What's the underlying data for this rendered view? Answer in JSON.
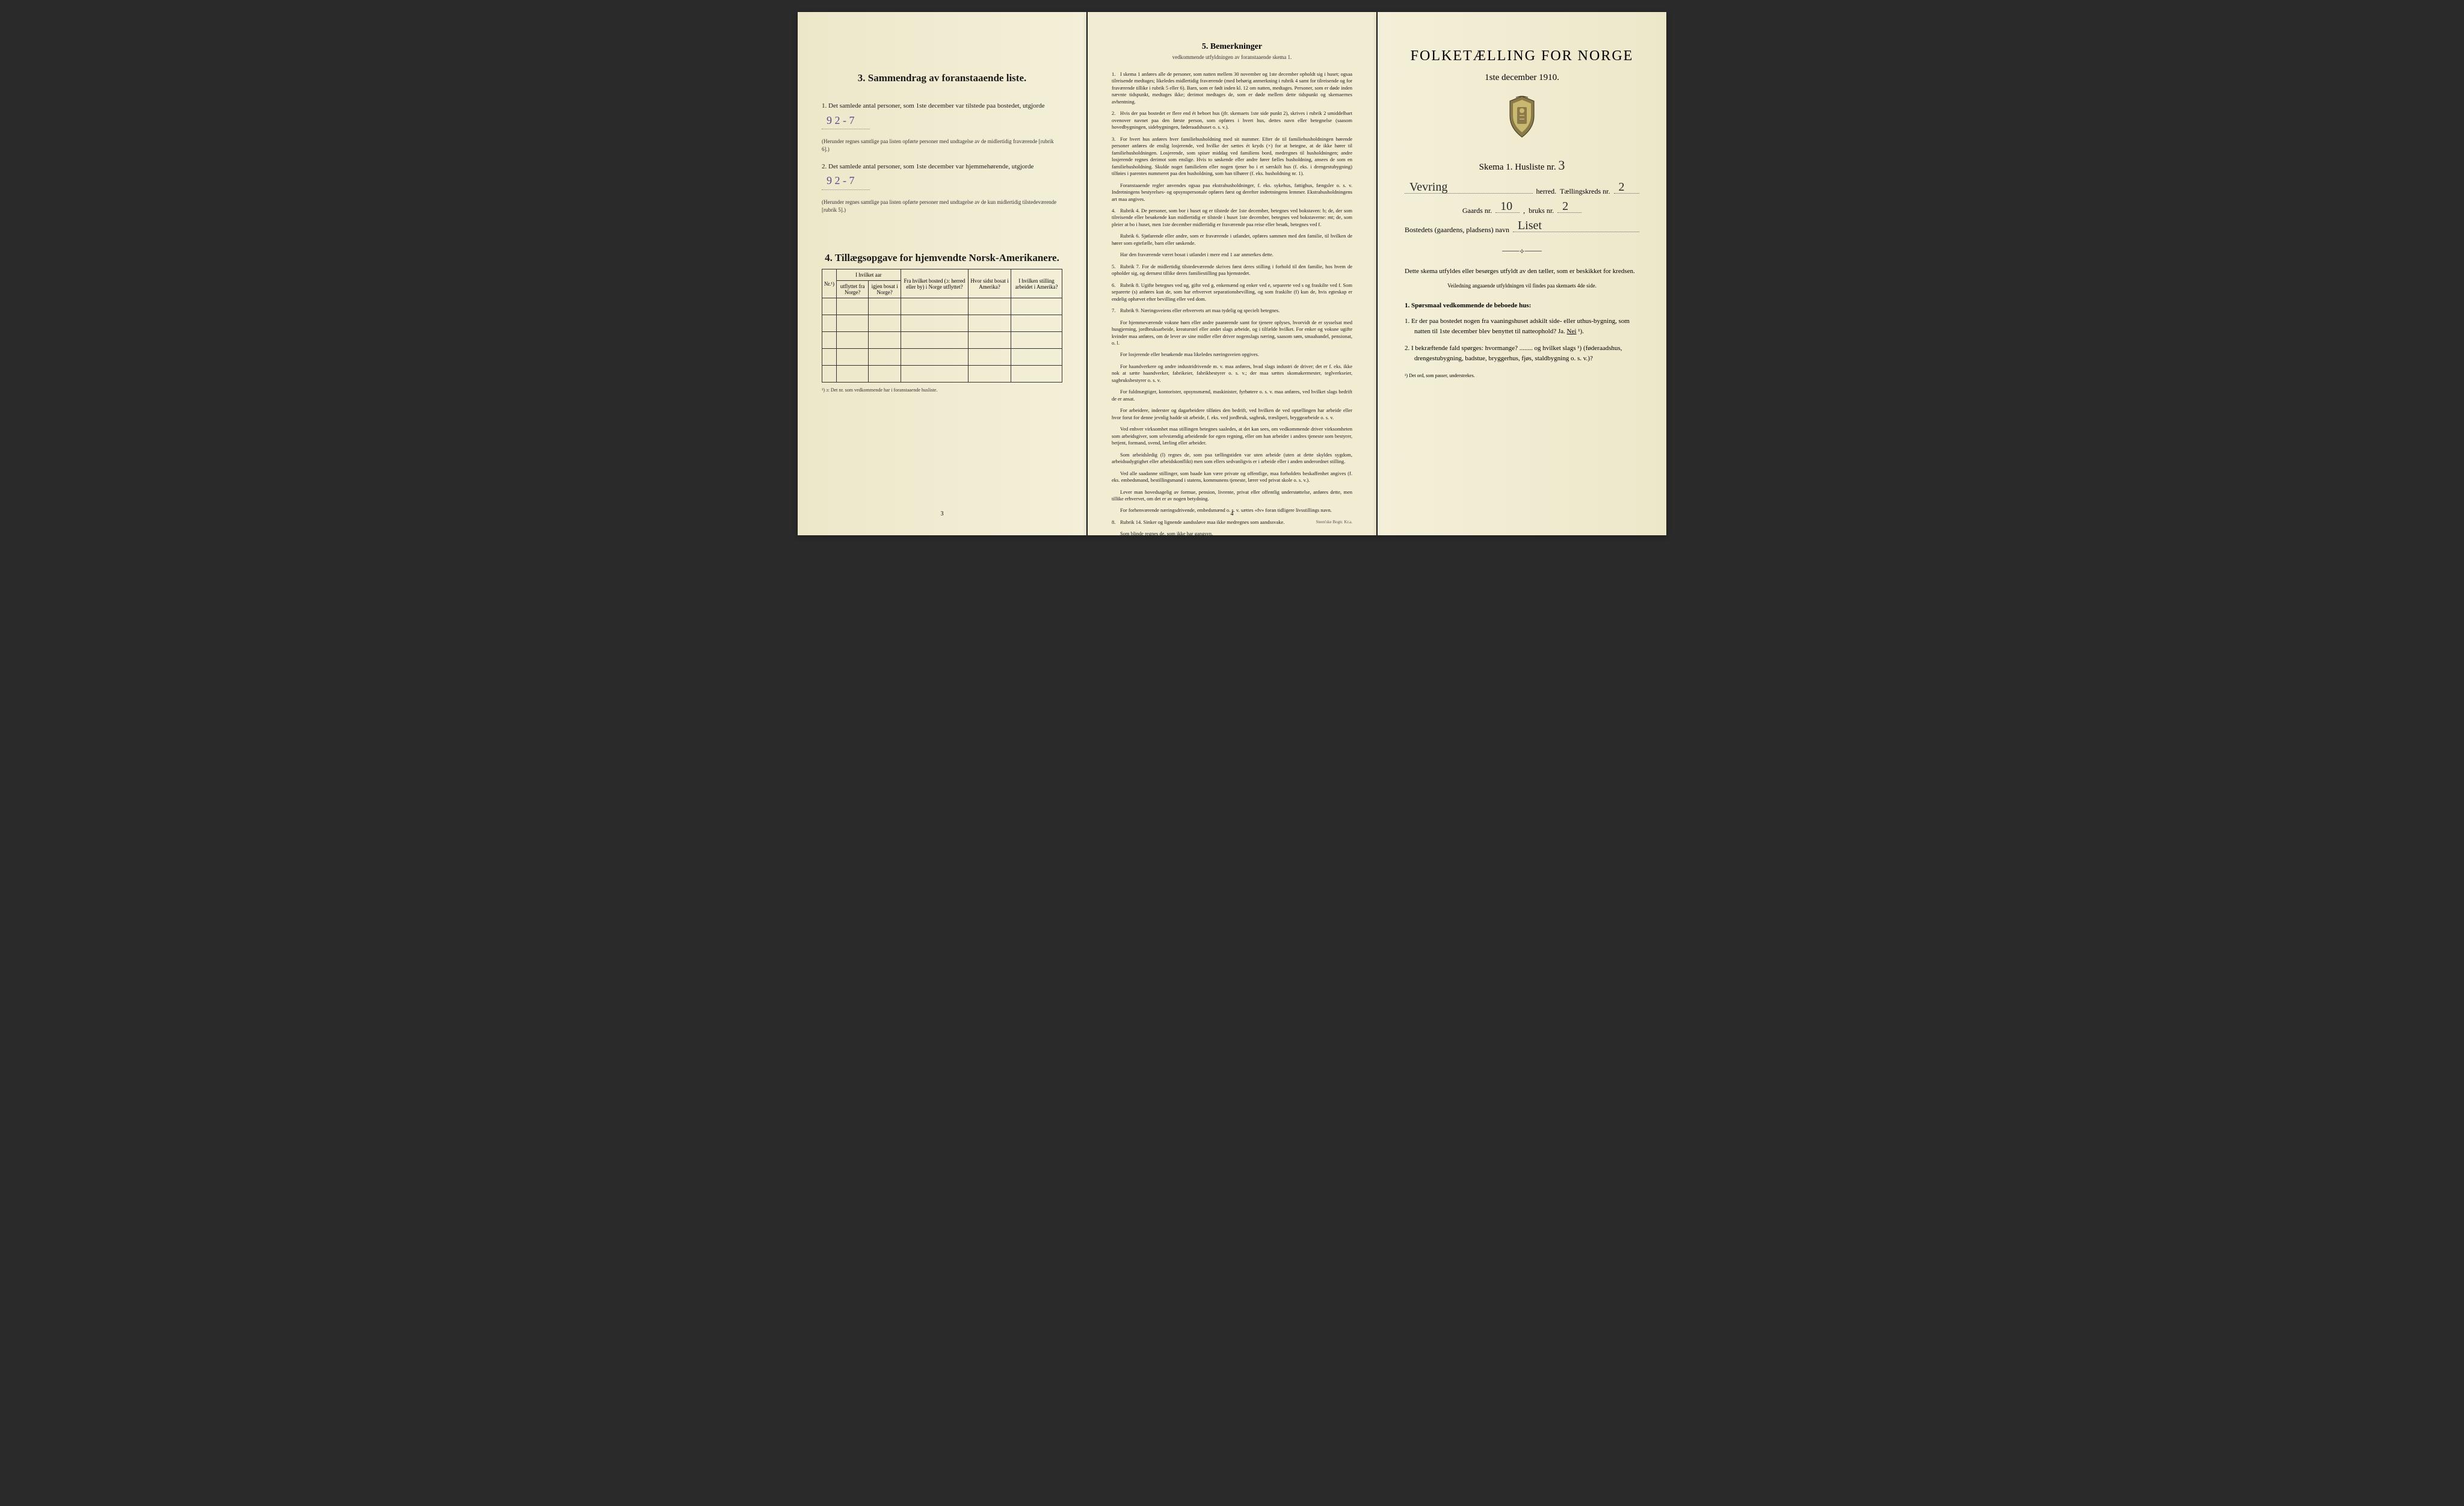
{
  "page1": {
    "section3": {
      "title": "3.   Sammendrag av foranstaaende liste.",
      "item1_prefix": "1.  Det samlede antal personer, som 1ste december var tilstede paa bostedet, utgjorde",
      "item1_value": "9   2 - 7",
      "item1_note": "(Herunder regnes samtlige paa listen opførte personer med undtagelse av de midlertidig fraværende [rubrik 6].)",
      "item2_prefix": "2.  Det samlede antal personer, som 1ste december var hjemmehørende, utgjorde",
      "item2_value": "9    2 - 7",
      "item2_note": "(Herunder regnes samtlige paa listen opførte personer med undtagelse av de kun midlertidig tilstedeværende [rubrik 5].)"
    },
    "section4": {
      "title": "4.  Tillægsopgave for hjemvendte Norsk-Amerikanere.",
      "cols": {
        "c1": "Nr.¹)",
        "c2a": "I hvilket aar",
        "c2b_left": "utflyttet fra Norge?",
        "c2b_right": "igjen bosat i Norge?",
        "c3": "Fra hvilket bosted (ɔ: herred eller by) i Norge utflyttet?",
        "c4": "Hvor sidst bosat i Amerika?",
        "c5": "I hvilken stilling arbeidet i Amerika?"
      },
      "footnote": "¹) ɔ: Det nr. som vedkommende har i foranstaaende husliste."
    },
    "page_number": "3"
  },
  "page2": {
    "title": "5.   Bemerkninger",
    "subtitle": "vedkommende utfyldningen av foranstaaende skema 1.",
    "rules": [
      {
        "n": "1.",
        "text": "I skema 1 anføres alle de personer, som natten mellem 30 november og 1ste december opholdt sig i huset; ogsaa tilreisende medtages; likeledes midlertidig fraværende (med behørig anmerkning i rubrik 4 samt for tilreisende og for fraværende tillike i rubrik 5 eller 6). Barn, som er født inden kl. 12 om natten, medtages. Personer, som er døde inden nævnte tidspunkt, medtages ikke; derimot medtages de, som er døde mellem dette tidspunkt og skemaernes avhentning."
      },
      {
        "n": "2.",
        "text": "Hvis der paa bostedet er flere end ét beboet hus (jfr. skemaets 1ste side punkt 2), skrives i rubrik 2 umiddelbart ovenover navnet paa den første person, som opføres i hvert hus, dettes navn eller betegnelse (saasom hovedbygningen, sidebygningen, føderaadshuset o. s. v.)."
      },
      {
        "n": "3.",
        "text": "For hvert hus anføres hver familiehusholdning med sit nummer. Efter de til familiehusholdningen hørende personer anføres de enslig losjerende, ved hvilke der sættes ét kryds (×) for at betegne, at de ikke hører til familiehusholdningen. Losjerende, som spiser middag ved familiens bord, medregnes til husholdningen; andre losjerende regnes derimot som enslige. Hvis to søskende eller andre fører fælles husholdning, ansees de som en familiehusholdning. Skulde noget familielem eller nogen tjener bo i et særskilt hus (f. eks. i drengestubygning) tilføies i parentes nummeret paa den husholdning, som han tilhører (f. eks. husholdning nr. 1).",
        "sub": [
          "Foranstaaende regler anvendes ogsaa paa ekstrahusholdninger, f. eks. sykehus, fattighus, fængsler o. s. v. Indretningens bestyrelses- og opsynspersonale opføres først og derefter indretningens lemmer. Ekstrahusholdningens art maa angives."
        ]
      },
      {
        "n": "4.",
        "text": "Rubrik 4. De personer, som bor i huset og er tilstede der 1ste december, betegnes ved bokstaven: b; de, der som tilreisende eller besøkende kun midlertidig er tilstede i huset 1ste december, betegnes ved bokstaverne: mt; de, som pleier at bo i huset, men 1ste december midlertidig er fraværende paa reise eller besøk, betegnes ved f.",
        "sub": [
          "Rubrik 6. Sjøfarende eller andre, som er fraværende i utlandet, opføres sammen med den familie, til hvilken de hører som egtefælle, barn eller søskende.",
          "Har den fraværende været bosat i utlandet i mere end 1 aar anmerkes dette."
        ]
      },
      {
        "n": "5.",
        "text": "Rubrik 7. For de midlertidig tilstedeværende skrives først deres stilling i forhold til den familie, hos hvem de opholder sig, og dernæst tillike deres familiestilling paa hjemstedet."
      },
      {
        "n": "6.",
        "text": "Rubrik 8. Ugifte betegnes ved ug, gifte ved g, enkemænd og enker ved e, separerte ved s og fraskilte ved f. Som separerte (s) anføres kun de, som har erhvervet separationsbevilling, og som fraskilte (f) kun de, hvis egteskap er endelig ophævet efter bevilling eller ved dom."
      },
      {
        "n": "7.",
        "text": "Rubrik 9. Næringsveiens eller erhvervets art maa tydelig og specielt betegnes.",
        "sub": [
          "For hjemmeværende voksne børn eller andre paarørende samt for tjenere oplyses, hvorvidt de er sysselsat med husgjerning, jordbruksarbeide, kreaturstel eller andet slags arbeide, og i tilfælde hvilket. For enker og voksne ugifte kvinder maa anføres, om de lever av sine midler eller driver nogenslags næring, saasom søm, smaahandel, pensionat, o. l.",
          "For losjerende eller besøkende maa likeledes næringsveien opgives.",
          "For haandverkere og andre industridrivende m. v. maa anføres, hvad slags industri de driver; det er f. eks. ikke nok at sætte haandverker, fabrikeier, fabrikbestyrer o. s. v.; der maa sættes skomakermester, teglverkseier, sagbruksbestyrer o. s. v.",
          "For fuldmægtiger, kontorister, opsynsmænd, maskinister, fyrbøtere o. s. v. maa anføres, ved hvilket slags bedrift de er ansat.",
          "For arbeidere, inderster og dagarbeidere tilføies den bedrift, ved hvilken de ved optællingen har arbeide eller hvor forut for denne jevnlig hadde sit arbeide, f. eks. ved jordbruk, sagbruk, træsliperi, bryggearbeide o. s. v.",
          "Ved enhver virksomhet maa stillingen betegnes saaledes, at det kan sees, om vedkommende driver virksomheten som arbeidsgiver, som selvstændig arbeidende for egen regning, eller om han arbeider i andres tjeneste som bestyrer, betjent, formand, svend, lærling eller arbeider.",
          "Som arbeidsledig (l) regnes de, som paa tællingstiden var uten arbeide (uten at dette skyldes sygdom, arbeidsudygtighet eller arbeidskonflikt) men som ellers sedvanligvis er i arbeide eller i anden underordnet stilling.",
          "Ved alle saadanne stillinger, som baade kan være private og offentlige, maa forholdets beskaffenhet angives (f. eks. embedsmand, bestillingsmand i statens, kommunens tjeneste, lærer ved privat skole o. s. v.).",
          "Lever man hovedsagelig av formue, pension, livrente, privat eller offentlig understøttelse, anføres dette, men tillike erhvervet, om det er av nogen betydning.",
          "For forhenværende næringsdrivende, embedsmænd o. s. v. sættes «fv» foran tidligere livsstillings navn."
        ]
      },
      {
        "n": "8.",
        "text": "Rubrik 14. Sinker og lignende aandssløve maa ikke medregnes som aandssvake.",
        "sub": [
          "Som blinde regnes de, som ikke har gangsyn."
        ]
      }
    ],
    "page_number": "4",
    "printer": "Steen'ske Bogtr. Kr.a."
  },
  "page3": {
    "main_title": "FOLKETÆLLING FOR NORGE",
    "date": "1ste december 1910.",
    "skema_label": "Skema 1.  Husliste nr.",
    "skema_value": "3",
    "herred_value": "Vevring",
    "herred_label": "herred.",
    "teglings_label": "Tællingskreds nr.",
    "teglings_value": "2",
    "gaards_label": "Gaards nr.",
    "gaards_value": "10",
    "bruks_label": "bruks nr.",
    "bruks_value": "2",
    "bosted_label": "Bostedets (gaardens, pladsens) navn",
    "bosted_value": "Liset",
    "instructions_main": "Dette skema utfyldes eller besørges utfyldt av den tæller, som er beskikket for kredsen.",
    "instructions_sub": "Veiledning angaaende utfyldningen vil findes paa skemaets 4de side.",
    "q_heading": "1. Spørsmaal vedkommende de beboede hus:",
    "q1": "1.  Er der paa bostedet nogen fra vaaningshuset adskilt side- eller uthus-bygning, som natten til 1ste december blev benyttet til natteophold?   Ja.   Nei ¹).",
    "q2": "2.  I bekræftende fald spørges: hvormange? ........ og hvilket slags ¹) (føderaadshus, drengestubygning, badstue, bryggerhus, fjøs, staldbygning o. s. v.)?",
    "footnote": "¹) Det ord, som passer, understrekes."
  }
}
